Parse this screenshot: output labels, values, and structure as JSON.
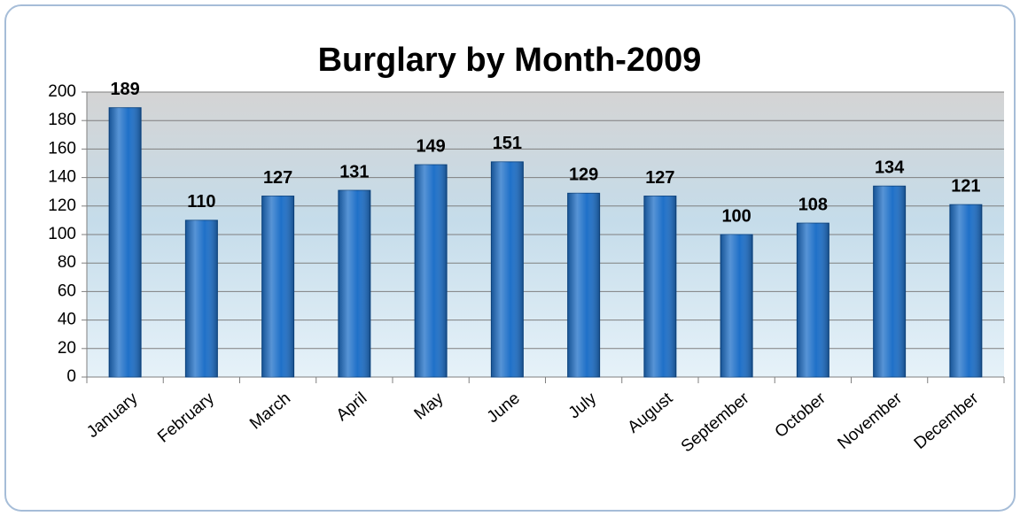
{
  "chart_data": {
    "type": "bar",
    "title": "Burglary by Month-2009",
    "categories": [
      "January",
      "February",
      "March",
      "April",
      "May",
      "June",
      "July",
      "August",
      "September",
      "October",
      "November",
      "December"
    ],
    "values": [
      189,
      110,
      127,
      131,
      149,
      151,
      129,
      127,
      100,
      108,
      134,
      121
    ],
    "color": "#1f70c8",
    "ylim": [
      0,
      200
    ],
    "yticks": [
      0,
      20,
      40,
      60,
      80,
      100,
      120,
      140,
      160,
      180,
      200
    ],
    "grid": true
  }
}
